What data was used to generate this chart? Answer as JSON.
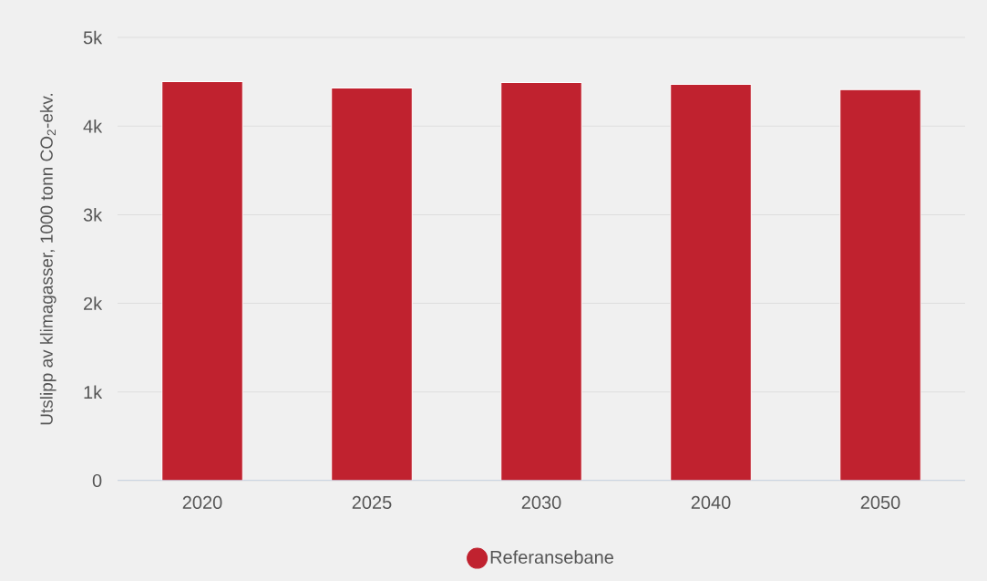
{
  "chart_data": {
    "type": "bar",
    "ylabel": "Utslipp av klimagasser, 1000 tonn CO$_{2}$-ekv.",
    "categories": [
      "2020",
      "2025",
      "2030",
      "2040",
      "2050"
    ],
    "series": [
      {
        "name": "Referansebane",
        "color": "#c0222f",
        "values": [
          4500,
          4430,
          4490,
          4470,
          4410
        ]
      }
    ],
    "ylim": [
      0,
      5000
    ],
    "yticks": [
      0,
      {
        "value": 1000,
        "label": "1k"
      },
      {
        "value": 2000,
        "label": "2k"
      },
      {
        "value": 3000,
        "label": "3k"
      },
      {
        "value": 4000,
        "label": "4k"
      },
      {
        "value": 5000,
        "label": "5k"
      }
    ],
    "grid": "y",
    "legend": "bottom"
  }
}
